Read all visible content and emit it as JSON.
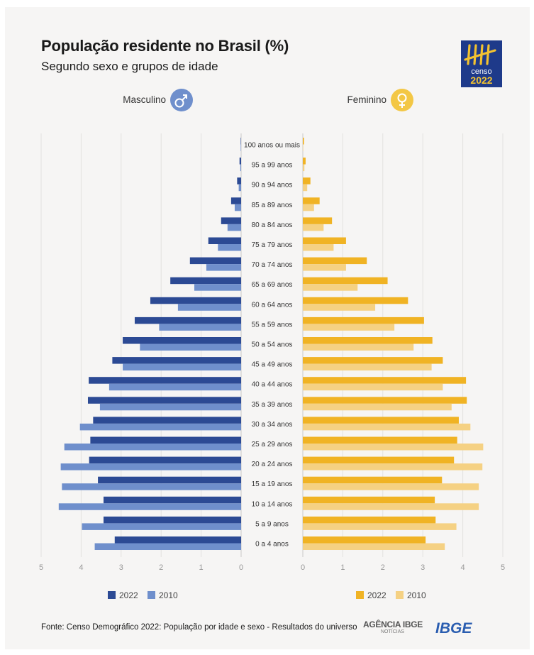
{
  "title": "População residente no Brasil (%)",
  "subtitle": "Segundo sexo e grupos de idade",
  "logo": {
    "text_top": "censo",
    "text_bottom": "2022"
  },
  "left_header": "Masculino",
  "right_header": "Feminino",
  "source": "Fonte: Censo Demográfico 2022: População por idade e sexo - Resultados do universo",
  "agencia": {
    "name": "AGÊNCIA IBGE",
    "sub": "NOTÍCIAS"
  },
  "ibge": "IBGE",
  "colors": {
    "male_2022": "#2c4a94",
    "male_2010": "#6f8fcc",
    "female_2022": "#f0b324",
    "female_2010": "#f5d183",
    "male_icon": "#6f8fcc",
    "female_icon": "#f3c745"
  },
  "chart_data": {
    "type": "bar",
    "orientation": "horizontal-pyramid",
    "categories": [
      "100 anos ou mais",
      "95 a 99 anos",
      "90 a 94 anos",
      "85 a 89 anos",
      "80 a 84 anos",
      "75 a 79 anos",
      "70 a 74 anos",
      "65 a 69 anos",
      "60 a 64 anos",
      "55 a 59 anos",
      "50 a 54 anos",
      "45 a 49 anos",
      "40 a 44 anos",
      "35 a 39 anos",
      "30 a 34 anos",
      "25 a 29 anos",
      "20 a 24 anos",
      "15 a 19 anos",
      "10 a 14 anos",
      "5 a 9 anos",
      "0 a 4 anos"
    ],
    "male": {
      "label": "Masculino",
      "series": [
        {
          "name": "2022",
          "values": [
            0.01,
            0.04,
            0.1,
            0.25,
            0.5,
            0.82,
            1.28,
            1.77,
            2.27,
            2.66,
            2.96,
            3.22,
            3.81,
            3.83,
            3.7,
            3.77,
            3.8,
            3.58,
            3.44,
            3.44,
            3.16
          ]
        },
        {
          "name": "2010",
          "values": [
            0.01,
            0.02,
            0.06,
            0.16,
            0.34,
            0.58,
            0.87,
            1.17,
            1.58,
            2.05,
            2.53,
            2.96,
            3.3,
            3.53,
            4.03,
            4.42,
            4.51,
            4.48,
            4.56,
            3.98,
            3.66
          ]
        }
      ]
    },
    "female": {
      "label": "Feminino",
      "series": [
        {
          "name": "2022",
          "values": [
            0.03,
            0.07,
            0.19,
            0.42,
            0.73,
            1.08,
            1.6,
            2.12,
            2.63,
            3.03,
            3.24,
            3.5,
            4.08,
            4.1,
            3.9,
            3.86,
            3.78,
            3.48,
            3.3,
            3.32,
            3.07
          ]
        },
        {
          "name": "2010",
          "values": [
            0.01,
            0.04,
            0.11,
            0.28,
            0.52,
            0.77,
            1.08,
            1.37,
            1.81,
            2.29,
            2.77,
            3.22,
            3.5,
            3.72,
            4.19,
            4.51,
            4.49,
            4.4,
            4.4,
            3.84,
            3.55
          ]
        }
      ]
    },
    "xticks_left": [
      "5",
      "4",
      "3",
      "2",
      "1",
      "0"
    ],
    "xticks_right": [
      "0",
      "1",
      "2",
      "3",
      "4",
      "5"
    ],
    "xlim": [
      0,
      5
    ],
    "legend_placement": "bottom",
    "grid": true
  }
}
